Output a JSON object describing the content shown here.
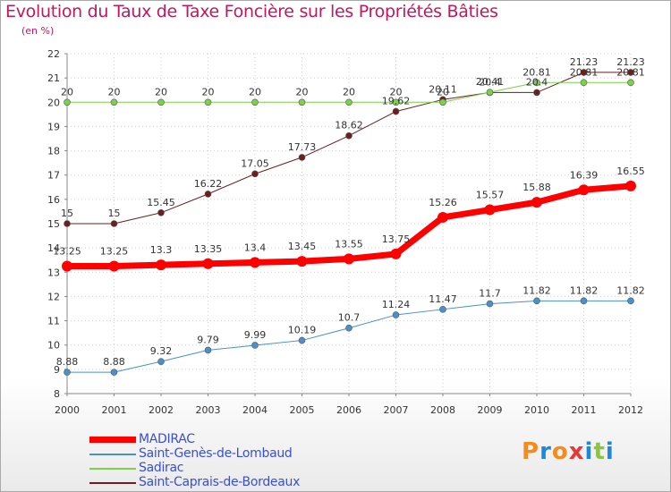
{
  "title": "Evolution du Taux de Taxe Foncière sur les Propriétés Bâties",
  "subtitle": "(en %)",
  "logo": {
    "letters": [
      "P",
      "r",
      "o",
      "x",
      "i",
      "t",
      "i"
    ],
    "colors": [
      "#f28c1f",
      "#1e88d8",
      "#f28c1f",
      "#e53935",
      "#1e88d8",
      "#8bc34a",
      "#1e88d8"
    ]
  },
  "chart_data": {
    "type": "line",
    "title": "Evolution du Taux de Taxe Foncière sur les Propriétés Bâties",
    "ylabel": "(en %)",
    "xlabel": "",
    "x": [
      "2000",
      "2001",
      "2002",
      "2003",
      "2004",
      "2005",
      "2006",
      "2007",
      "2008",
      "2009",
      "2010",
      "2011",
      "2012"
    ],
    "ylim": [
      8,
      22
    ],
    "yticks": [
      8,
      9,
      10,
      11,
      12,
      13,
      14,
      15,
      16,
      17,
      18,
      19,
      20,
      21,
      22
    ],
    "grid": true,
    "legend_position": "bottom-left",
    "series": [
      {
        "name": "MADIRAC",
        "color": "#ff0000",
        "line_width": 7,
        "values": [
          13.25,
          13.25,
          13.3,
          13.35,
          13.4,
          13.45,
          13.55,
          13.75,
          15.26,
          15.57,
          15.88,
          16.39,
          16.55
        ],
        "labels": [
          "13.25",
          "13.25",
          "13.3",
          "13.35",
          "13.4",
          "13.45",
          "13.55",
          "13.75",
          "15.26",
          "15.57",
          "15.88",
          "16.39",
          "16.55"
        ]
      },
      {
        "name": "Saint-Genès-de-Lombaud",
        "color": "#4a90c9",
        "line_width": 1,
        "values": [
          8.88,
          8.88,
          9.32,
          9.79,
          9.99,
          10.19,
          10.7,
          11.24,
          11.47,
          11.7,
          11.82,
          11.82,
          11.82
        ],
        "labels": [
          "8.88",
          "8.88",
          "9.32",
          "9.79",
          "9.99",
          "10.19",
          "10.7",
          "11.24",
          "11.47",
          "11.7",
          "11.82",
          "11.82",
          "11.82"
        ]
      },
      {
        "name": "Sadirac",
        "color": "#7cd14b",
        "line_width": 1,
        "values": [
          20,
          20,
          20,
          20,
          20,
          20,
          20,
          20,
          20,
          20.41,
          20.81,
          20.81,
          20.81
        ],
        "labels": [
          "20",
          "20",
          "20",
          "20",
          "20",
          "20",
          "20",
          "20",
          "20",
          "20.41",
          "20.81",
          "20.81",
          "20.81"
        ]
      },
      {
        "name": "Saint-Caprais-de-Bordeaux",
        "color": "#6b1f1f",
        "line_width": 1,
        "values": [
          15,
          15,
          15.45,
          16.22,
          17.05,
          17.73,
          18.62,
          19.62,
          20.11,
          20.4,
          20.4,
          21.23,
          21.23
        ],
        "labels": [
          "15",
          "15",
          "15.45",
          "16.22",
          "17.05",
          "17.73",
          "18.62",
          "19.62",
          "20.11",
          "20.4",
          "20.4",
          "21.23",
          "21.23"
        ]
      }
    ]
  }
}
